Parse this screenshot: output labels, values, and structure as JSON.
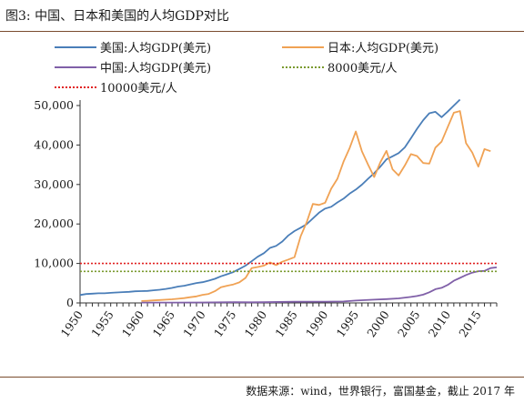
{
  "header": {
    "title": "图3: 中国、日本和美国的人均GDP对比"
  },
  "footer": {
    "source": "数据来源：wind，世界银行，富国基金，截止 2017 年"
  },
  "chart_data": {
    "type": "line",
    "title": "图3: 中国、日本和美国的人均GDP对比",
    "xlabel": "",
    "ylabel": "",
    "xlim": [
      1950,
      2018
    ],
    "ylim": [
      0,
      50000
    ],
    "x_ticks": [
      1950,
      1955,
      1960,
      1965,
      1970,
      1975,
      1980,
      1985,
      1990,
      1995,
      2000,
      2005,
      2010,
      2015
    ],
    "y_ticks": [
      0,
      10000,
      20000,
      30000,
      40000,
      50000
    ],
    "y_tick_labels": [
      "0",
      "10,000",
      "20,000",
      "30,000",
      "40,000",
      "50,000"
    ],
    "grid": false,
    "legend_position": "top",
    "series": [
      {
        "name": "美国:人均GDP(美元)",
        "color": "#4a7eb8",
        "style": "solid",
        "x": [
          1950,
          1951,
          1952,
          1953,
          1954,
          1955,
          1956,
          1957,
          1958,
          1959,
          1960,
          1961,
          1962,
          1963,
          1964,
          1965,
          1966,
          1967,
          1968,
          1969,
          1970,
          1971,
          1972,
          1973,
          1974,
          1975,
          1976,
          1977,
          1978,
          1979,
          1980,
          1981,
          1982,
          1983,
          1984,
          1985,
          1986,
          1987,
          1988,
          1989,
          1990,
          1991,
          1992,
          1993,
          1994,
          1995,
          1996,
          1997,
          1998,
          1999,
          2000,
          2001,
          2002,
          2003,
          2004,
          2005,
          2006,
          2007,
          2008,
          2009,
          2010,
          2011,
          2012
        ],
        "y": [
          2000,
          2250,
          2350,
          2450,
          2450,
          2550,
          2650,
          2750,
          2800,
          2950,
          3000,
          3050,
          3200,
          3350,
          3550,
          3800,
          4150,
          4350,
          4700,
          5050,
          5250,
          5650,
          6100,
          6750,
          7250,
          7800,
          8600,
          9450,
          10550,
          11700,
          12600,
          13950,
          14450,
          15550,
          17100,
          18200,
          19050,
          19950,
          21400,
          22850,
          23900,
          24350,
          25450,
          26400,
          27700,
          28700,
          29950,
          31450,
          32850,
          34500,
          36350,
          37150,
          37950,
          39400,
          41700,
          44100,
          46300,
          48050,
          48400,
          47050,
          48450,
          50000,
          51500
        ]
      },
      {
        "name": "日本:人均GDP(美元)",
        "color": "#f0a254",
        "style": "solid",
        "x": [
          1960,
          1961,
          1962,
          1963,
          1964,
          1965,
          1966,
          1967,
          1968,
          1969,
          1970,
          1971,
          1972,
          1973,
          1974,
          1975,
          1976,
          1977,
          1978,
          1979,
          1980,
          1981,
          1982,
          1983,
          1984,
          1985,
          1986,
          1987,
          1988,
          1989,
          1990,
          1991,
          1992,
          1993,
          1994,
          1995,
          1996,
          1997,
          1998,
          1999,
          2000,
          2001,
          2002,
          2003,
          2004,
          2005,
          2006,
          2007,
          2008,
          2009,
          2010,
          2011,
          2012,
          2013,
          2014,
          2015,
          2016,
          2017
        ],
        "y": [
          480,
          560,
          640,
          730,
          840,
          920,
          1060,
          1230,
          1450,
          1670,
          2040,
          2270,
          2970,
          3990,
          4360,
          4680,
          5200,
          6340,
          8820,
          9100,
          9450,
          10250,
          9590,
          10440,
          10980,
          11580,
          16880,
          20480,
          25060,
          24810,
          25360,
          28930,
          31460,
          35770,
          39270,
          43440,
          38440,
          35020,
          31900,
          35580,
          38530,
          33850,
          32290,
          34810,
          37690,
          37220,
          35430,
          35280,
          39340,
          40860,
          44510,
          48170,
          48600,
          40450,
          38110,
          34520,
          38970,
          38430
        ]
      },
      {
        "name": "中国:人均GDP(美元)",
        "color": "#8060a8",
        "style": "solid",
        "x": [
          1960,
          1965,
          1970,
          1975,
          1978,
          1980,
          1985,
          1990,
          1993,
          1995,
          1998,
          2000,
          2002,
          2004,
          2005,
          2006,
          2007,
          2008,
          2009,
          2010,
          2011,
          2012,
          2013,
          2014,
          2015,
          2016,
          2017,
          2018
        ],
        "y": [
          90,
          100,
          110,
          180,
          160,
          195,
          295,
          320,
          380,
          610,
          830,
          960,
          1150,
          1510,
          1760,
          2100,
          2700,
          3470,
          3830,
          4560,
          5620,
          6340,
          7080,
          7680,
          8030,
          8120,
          8830,
          9000
        ]
      },
      {
        "name": "8000美元/人",
        "color": "#7a9a2e",
        "style": "dotted",
        "x": [
          1950,
          2018
        ],
        "y": [
          8000,
          8000
        ]
      },
      {
        "name": "10000美元/人",
        "color": "#e02020",
        "style": "dotted",
        "x": [
          1950,
          2018
        ],
        "y": [
          10000,
          10000
        ]
      }
    ]
  }
}
